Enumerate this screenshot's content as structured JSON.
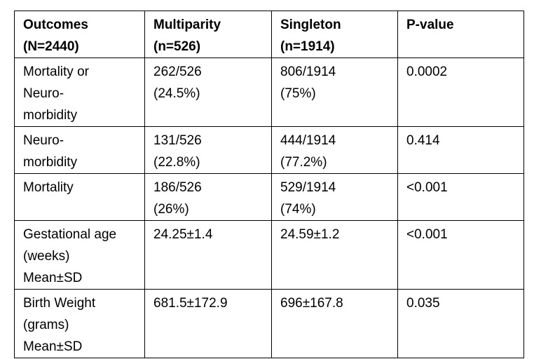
{
  "table": {
    "header": [
      [
        "Outcomes",
        "(N=2440)"
      ],
      [
        "Multiparity",
        "(n=526)"
      ],
      [
        "Singleton",
        "(n=1914)"
      ],
      [
        "P-value"
      ]
    ],
    "rows": [
      [
        [
          "Mortality or",
          "Neuro-",
          "morbidity"
        ],
        [
          "262/526",
          "(24.5%)"
        ],
        [
          "806/1914",
          "(75%)"
        ],
        [
          "0.0002"
        ]
      ],
      [
        [
          "Neuro-",
          "morbidity"
        ],
        [
          "131/526",
          "(22.8%)"
        ],
        [
          "444/1914",
          "(77.2%)"
        ],
        [
          "0.414"
        ]
      ],
      [
        [
          "Mortality"
        ],
        [
          "186/526",
          "(26%)"
        ],
        [
          "529/1914",
          "(74%)"
        ],
        [
          "<0.001"
        ]
      ],
      [
        [
          "Gestational age",
          "(weeks)",
          "Mean±SD"
        ],
        [
          "24.25±1.4"
        ],
        [
          "24.59±1.2"
        ],
        [
          "<0.001"
        ]
      ],
      [
        [
          "Birth Weight",
          "(grams)",
          "Mean±SD"
        ],
        [
          "681.5±172.9"
        ],
        [
          "696±167.8"
        ],
        [
          "0.035"
        ]
      ]
    ]
  }
}
